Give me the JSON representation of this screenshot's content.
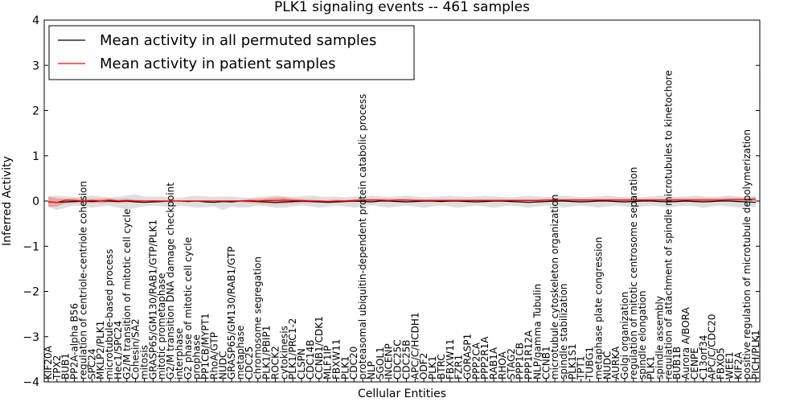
{
  "chart_data": {
    "type": "line",
    "title": "PLK1 signaling events -- 461 samples",
    "xlabel": "Cellular Entities",
    "ylabel": "Inferred Activity",
    "ylim": [
      -4,
      4
    ],
    "yticks": [
      -4,
      -3,
      -2,
      -1,
      0,
      1,
      2,
      3,
      4
    ],
    "ytick_labels": [
      "−4",
      "−3",
      "−2",
      "−1",
      "0",
      "1",
      "2",
      "3",
      "4"
    ],
    "grid": false,
    "legend_position": "top-left",
    "categories": [
      "KIF20A",
      "TPX2",
      "BUB1",
      "PP2A-alpha B56",
      "regulation of centriole-centriole cohesion",
      "SPC24",
      "MKLP2/PLK1",
      "microtubule-based process",
      "Hec1/SPC24",
      "G2/M transition of mitotic cell cycle",
      "Cohesin/SA2",
      "mitosis",
      "GRASP65/GM130/RAB1/GTP/PLK1",
      "mitotic prometaphase",
      "G2/M transition DNA damage checkpoint",
      "interphase",
      "G2 phase of mitotic cell cycle",
      "prophase",
      "PP1CB/MYPT1",
      "RhoA/GTP",
      "NUDC",
      "GRASP65/GM130/RAB1/GTP",
      "metaphase",
      "CDC25",
      "chromosome segregation",
      "PLK1/PBIP1",
      "ROCK2",
      "cytokinesis",
      "PLK1/PRC1-2",
      "CLSPN",
      "CDC14B",
      "CCNB1/CDK1",
      "MLF1IP",
      "FBXW11",
      "PLK1",
      "CDC20",
      "proteasomal ubiquitin-dependent protein catabolic process",
      "NLP",
      "SGOL1",
      "INCENP",
      "CDC25C",
      "CDC25B",
      "APC/C/HCDH1",
      "ODF2",
      "PLK1",
      "BTRC",
      "FBXW11",
      "FZR1",
      "GORASP1",
      "PPP2CA",
      "PPP2R1A",
      "RAB1A",
      "RHOA",
      "STAG2",
      "PPP1CB",
      "PPP1R12A",
      "NLP/gamma Tubulin",
      "CCNB1",
      "microtubule cytoskeleton organization",
      "spindle stabilization",
      "PLK1S1",
      "TPT1",
      "TUBG1",
      "metaphase plate congression",
      "NUDC",
      "AURKA",
      "Golgi organization",
      "regulation of mitotic centrosome separation",
      "spindle elongation",
      "PLK1",
      "spindle assembly",
      "regulation of attachment of spindle microtubules to kinetochore",
      "BUB1B",
      "Aurora A/BORA",
      "CENPE",
      "C13orf34",
      "APC/C/CDC20",
      "FBXO5",
      "WEE1",
      "KIF2A",
      "positive regulation of microtubule depolymerization",
      "PICH/PLK1"
    ],
    "series": [
      {
        "name": "Mean activity in all permuted samples",
        "color": "#000000",
        "values": [
          -0.02,
          -0.03,
          -0.02,
          -0.01,
          0.0,
          -0.01,
          0.0,
          0.0,
          -0.01,
          0.0,
          -0.02,
          -0.03,
          -0.02,
          -0.01,
          0.0,
          0.0,
          -0.01,
          0.0,
          -0.02,
          -0.03,
          -0.01,
          -0.02,
          0.0,
          0.0,
          -0.01,
          -0.02,
          -0.03,
          -0.02,
          -0.01,
          0.0,
          -0.01,
          -0.02,
          -0.03,
          -0.02,
          -0.01,
          0.0,
          -0.01,
          -0.02,
          0.0,
          0.0,
          -0.01,
          -0.02,
          -0.01,
          0.0,
          0.0,
          -0.01,
          0.0,
          0.0,
          -0.01,
          -0.02,
          -0.01,
          0.0,
          0.0,
          -0.01,
          -0.02,
          -0.03,
          -0.02,
          -0.01,
          0.0,
          0.0,
          -0.01,
          -0.02,
          -0.01,
          0.0,
          0.0,
          -0.01,
          -0.02,
          -0.01,
          0.0,
          0.0,
          -0.01,
          -0.02,
          -0.01,
          0.0,
          -0.01,
          -0.02,
          -0.01,
          0.0,
          0.0,
          -0.01,
          -0.02,
          -0.03
        ],
        "band_upper": [
          0.1,
          0.12,
          0.1,
          0.09,
          0.1,
          0.12,
          0.1,
          0.08,
          0.09,
          0.12,
          0.15,
          0.1,
          0.09,
          0.1,
          0.08,
          0.07,
          0.1,
          0.12,
          0.1,
          0.09,
          0.1,
          0.1,
          0.08,
          0.07,
          0.09,
          0.1,
          0.12,
          0.1,
          0.09,
          0.1,
          0.12,
          0.1,
          0.09,
          0.1,
          0.08,
          0.1,
          0.09,
          0.12,
          0.1,
          0.09,
          0.1,
          0.12,
          0.1,
          0.08,
          0.09,
          0.1,
          0.12,
          0.1,
          0.09,
          0.1,
          0.12,
          0.1,
          0.09,
          0.08,
          0.1,
          0.12,
          0.1,
          0.09,
          0.1,
          0.12,
          0.1,
          0.08,
          0.09,
          0.1,
          0.12,
          0.1,
          0.09,
          0.1,
          0.08,
          0.1,
          0.12,
          0.1,
          0.09,
          0.1,
          0.12,
          0.1,
          0.09,
          0.1,
          0.12,
          0.1,
          0.09,
          0.12
        ],
        "band_lower": [
          -0.12,
          -0.2,
          -0.15,
          -0.1,
          -0.12,
          -0.15,
          -0.12,
          -0.1,
          -0.15,
          -0.18,
          -0.15,
          -0.12,
          -0.1,
          -0.12,
          -0.15,
          -0.1,
          -0.12,
          -0.15,
          -0.14,
          -0.12,
          -0.2,
          -0.12,
          -0.15,
          -0.14,
          -0.1,
          -0.12,
          -0.15,
          -0.15,
          -0.12,
          -0.1,
          -0.12,
          -0.15,
          -0.12,
          -0.1,
          -0.12,
          -0.15,
          -0.12,
          -0.1,
          -0.12,
          -0.15,
          -0.12,
          -0.1,
          -0.12,
          -0.15,
          -0.12,
          -0.1,
          -0.12,
          -0.15,
          -0.12,
          -0.1,
          -0.12,
          -0.15,
          -0.12,
          -0.1,
          -0.12,
          -0.15,
          -0.12,
          -0.1,
          -0.12,
          -0.15,
          -0.12,
          -0.1,
          -0.12,
          -0.15,
          -0.12,
          -0.1,
          -0.12,
          -0.15,
          -0.12,
          -0.1,
          -0.12,
          -0.15,
          -0.12,
          -0.1,
          -0.12,
          -0.15,
          -0.12,
          -0.1,
          -0.12,
          -0.15,
          -0.12,
          -0.14
        ]
      },
      {
        "name": "Mean activity in patient samples",
        "color": "#ff0000",
        "values": [
          -0.02,
          -0.03,
          0.02,
          0.01,
          0.0,
          0.01,
          0.0,
          0.02,
          0.0,
          0.01,
          0.0,
          0.0,
          0.0,
          0.0,
          0.0,
          0.0,
          0.0,
          0.0,
          0.0,
          0.0,
          0.0,
          0.0,
          0.0,
          0.01,
          0.0,
          0.01,
          0.01,
          0.02,
          0.01,
          0.01,
          0.0,
          0.0,
          -0.01,
          0.0,
          0.0,
          0.01,
          0.02,
          0.02,
          0.02,
          0.01,
          0.02,
          0.02,
          0.01,
          0.01,
          0.01,
          0.01,
          0.01,
          0.01,
          0.01,
          0.01,
          0.01,
          0.01,
          0.01,
          0.01,
          0.01,
          0.01,
          0.01,
          0.02,
          0.02,
          0.02,
          0.02,
          0.02,
          0.02,
          0.02,
          0.02,
          0.02,
          0.02,
          0.02,
          0.02,
          0.02,
          0.02,
          0.02,
          0.02,
          0.02,
          0.02,
          0.02,
          0.02,
          0.02,
          0.03,
          0.03,
          0.03,
          0.04
        ],
        "band_upper": [
          0.1,
          0.06,
          0.05,
          0.06,
          0.04,
          0.05,
          0.05,
          0.06,
          0.04,
          0.05,
          0.03,
          0.02,
          0.02,
          0.01,
          0.01,
          0.01,
          0.01,
          0.01,
          0.01,
          0.01,
          0.01,
          0.01,
          0.02,
          0.04,
          0.05,
          0.06,
          0.08,
          0.08,
          0.06,
          0.04,
          0.03,
          0.02,
          0.02,
          0.03,
          0.02,
          0.04,
          0.05,
          0.05,
          0.05,
          0.05,
          0.05,
          0.05,
          0.04,
          0.04,
          0.04,
          0.04,
          0.04,
          0.04,
          0.04,
          0.04,
          0.04,
          0.04,
          0.04,
          0.04,
          0.04,
          0.04,
          0.04,
          0.05,
          0.05,
          0.05,
          0.05,
          0.05,
          0.05,
          0.05,
          0.05,
          0.05,
          0.05,
          0.05,
          0.05,
          0.05,
          0.05,
          0.05,
          0.06,
          0.06,
          0.06,
          0.06,
          0.06,
          0.06,
          0.07,
          0.07,
          0.07,
          0.08
        ],
        "band_lower": [
          -0.14,
          -0.12,
          -0.05,
          -0.04,
          -0.05,
          -0.04,
          -0.05,
          -0.03,
          -0.04,
          -0.03,
          -0.02,
          -0.01,
          -0.01,
          -0.01,
          -0.01,
          -0.01,
          -0.01,
          -0.01,
          -0.01,
          -0.01,
          -0.01,
          -0.01,
          -0.02,
          -0.04,
          -0.05,
          -0.06,
          -0.07,
          -0.06,
          -0.05,
          -0.04,
          -0.03,
          -0.02,
          -0.03,
          -0.02,
          -0.02,
          -0.02,
          -0.01,
          -0.01,
          -0.01,
          -0.02,
          -0.01,
          -0.01,
          -0.02,
          -0.02,
          -0.02,
          -0.02,
          -0.02,
          -0.02,
          -0.02,
          -0.02,
          -0.02,
          -0.02,
          -0.02,
          -0.02,
          -0.02,
          -0.02,
          -0.02,
          -0.01,
          -0.01,
          -0.01,
          -0.01,
          -0.01,
          -0.01,
          -0.01,
          -0.01,
          -0.01,
          -0.01,
          -0.01,
          -0.01,
          -0.01,
          -0.01,
          -0.01,
          -0.01,
          -0.01,
          -0.01,
          -0.01,
          -0.01,
          -0.01,
          0.0,
          0.0,
          0.0,
          0.0
        ]
      }
    ]
  }
}
